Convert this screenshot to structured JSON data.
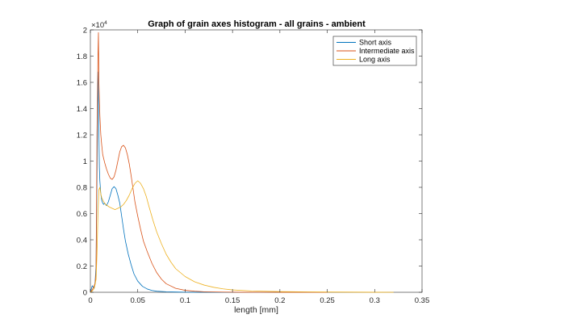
{
  "chart_data": {
    "type": "line",
    "title": "Graph of grain axes histogram - all grains - ambient",
    "xlabel": "length [mm]",
    "ylabel": "",
    "xlim": [
      0,
      0.35
    ],
    "ylim": [
      0,
      20000
    ],
    "xticks": [
      0,
      0.05,
      0.1,
      0.15,
      0.2,
      0.25,
      0.3,
      0.35
    ],
    "xtick_labels": [
      "0",
      "0.05",
      "0.1",
      "0.15",
      "0.2",
      "0.25",
      "0.3",
      "0.35"
    ],
    "yticks": [
      0,
      2000,
      4000,
      6000,
      8000,
      10000,
      12000,
      14000,
      16000,
      18000,
      20000
    ],
    "ytick_labels": [
      "0",
      "0.2",
      "0.4",
      "0.6",
      "0.8",
      "1",
      "1.2",
      "1.4",
      "1.6",
      "1.8",
      "2"
    ],
    "y_exponent": {
      "base": "×10",
      "power": "4"
    },
    "grid": false,
    "legend": {
      "position": "top-right"
    },
    "series": [
      {
        "name": "Short axis",
        "color": "#0072BD",
        "x": [
          0,
          0.002,
          0.004,
          0.005,
          0.006,
          0.007,
          0.008,
          0.009,
          0.0095,
          0.01,
          0.011,
          0.012,
          0.013,
          0.014,
          0.015,
          0.017,
          0.019,
          0.021,
          0.023,
          0.025,
          0.027,
          0.029,
          0.031,
          0.033,
          0.035,
          0.037,
          0.04,
          0.043,
          0.046,
          0.05,
          0.055,
          0.06,
          0.065,
          0.07,
          0.08,
          0.09,
          0.1,
          0.11,
          0.12,
          0.14,
          0.17,
          0.2
        ],
        "y": [
          0,
          500,
          300,
          800,
          2000,
          9000,
          16800,
          12000,
          9500,
          8500,
          7500,
          7000,
          6800,
          6700,
          6800,
          6600,
          6900,
          7400,
          7900,
          8050,
          7900,
          7400,
          6800,
          5800,
          4800,
          3900,
          2900,
          2100,
          1400,
          850,
          450,
          250,
          140,
          80,
          40,
          20,
          10,
          5,
          0,
          0,
          0,
          0
        ]
      },
      {
        "name": "Intermediate axis",
        "color": "#D95319",
        "x": [
          0,
          0.002,
          0.004,
          0.005,
          0.006,
          0.007,
          0.008,
          0.0085,
          0.009,
          0.01,
          0.011,
          0.012,
          0.013,
          0.015,
          0.017,
          0.019,
          0.021,
          0.023,
          0.025,
          0.027,
          0.029,
          0.031,
          0.033,
          0.035,
          0.037,
          0.039,
          0.041,
          0.043,
          0.045,
          0.047,
          0.05,
          0.053,
          0.056,
          0.06,
          0.065,
          0.07,
          0.075,
          0.08,
          0.09,
          0.1,
          0.11,
          0.12,
          0.14,
          0.16,
          0.2,
          0.25
        ],
        "y": [
          0,
          200,
          500,
          700,
          1500,
          12000,
          18000,
          19800,
          16000,
          13500,
          12000,
          11200,
          10500,
          9900,
          9400,
          9000,
          8700,
          8600,
          8800,
          9300,
          10000,
          10700,
          11100,
          11200,
          11000,
          10500,
          9800,
          8900,
          7900,
          6900,
          5800,
          4800,
          3900,
          3100,
          2200,
          1500,
          1000,
          650,
          300,
          150,
          80,
          40,
          15,
          5,
          0,
          0
        ]
      },
      {
        "name": "Long axis",
        "color": "#EDB120",
        "x": [
          0,
          0.002,
          0.004,
          0.005,
          0.006,
          0.007,
          0.008,
          0.009,
          0.01,
          0.011,
          0.012,
          0.014,
          0.016,
          0.018,
          0.02,
          0.023,
          0.026,
          0.029,
          0.032,
          0.035,
          0.038,
          0.041,
          0.044,
          0.047,
          0.05,
          0.053,
          0.056,
          0.059,
          0.062,
          0.066,
          0.07,
          0.075,
          0.08,
          0.085,
          0.09,
          0.1,
          0.11,
          0.12,
          0.13,
          0.14,
          0.15,
          0.17,
          0.2,
          0.25,
          0.3,
          0.32
        ],
        "y": [
          0,
          100,
          300,
          600,
          1000,
          3000,
          6000,
          7800,
          8000,
          7500,
          7200,
          6900,
          6700,
          6600,
          6500,
          6400,
          6300,
          6400,
          6500,
          6700,
          7000,
          7400,
          7900,
          8300,
          8500,
          8300,
          7900,
          7300,
          6500,
          5500,
          4600,
          3700,
          2900,
          2300,
          1800,
          1200,
          800,
          550,
          380,
          260,
          180,
          100,
          50,
          20,
          5,
          0
        ]
      }
    ]
  }
}
